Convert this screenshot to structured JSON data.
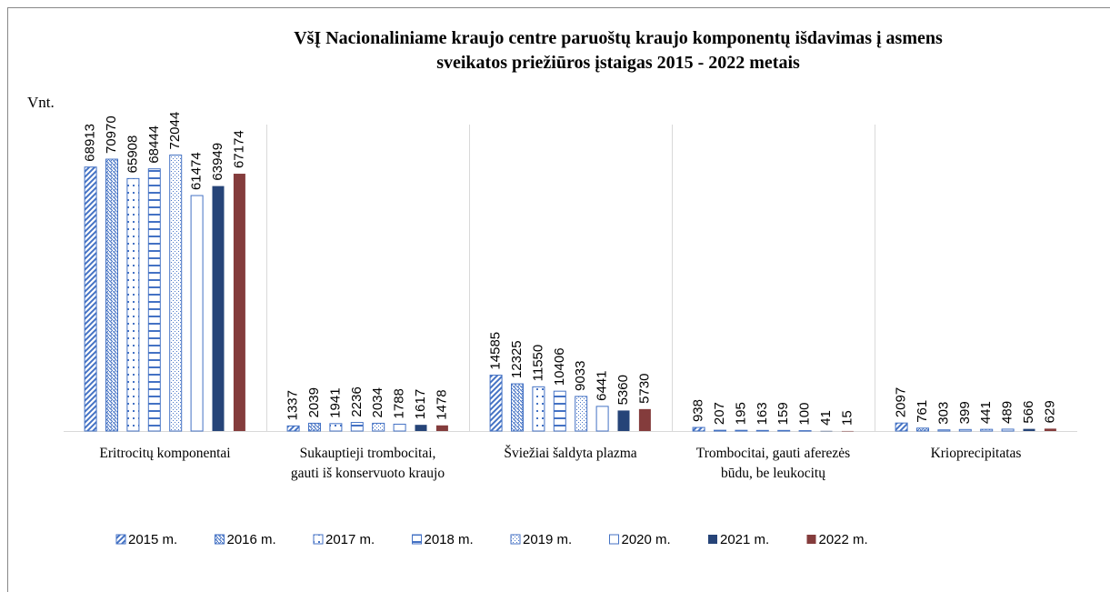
{
  "chart_data": {
    "type": "bar",
    "title": "VšĮ Nacionaliniame kraujo centre paruoštų kraujo komponentų išdavimas į asmens",
    "subtitle": "sveikatos priežiūros įstaigas 2015 - 2022 metais",
    "y_label": "Vnt.",
    "categories": [
      "Eritrocitų komponentai",
      "Sukauptieji trombocitai, gauti iš konservuoto kraujo",
      "Šviežiai šaldyta plazma",
      "Trombocitai, gauti aferezės būdu, be leukocitų",
      "Krioprecipitatas"
    ],
    "series": [
      {
        "name": "2015 m.",
        "color": "#4472c4",
        "values": [
          68913,
          1337,
          14585,
          938,
          2097
        ]
      },
      {
        "name": "2016 m.",
        "color": "#4472c4",
        "values": [
          70970,
          2039,
          12325,
          207,
          761
        ]
      },
      {
        "name": "2017 m.",
        "color": "#4472c4",
        "values": [
          65908,
          1941,
          11550,
          195,
          303
        ]
      },
      {
        "name": "2018 m.",
        "color": "#4472c4",
        "values": [
          68444,
          2236,
          10406,
          163,
          399
        ]
      },
      {
        "name": "2019 m.",
        "color": "#4472c4",
        "values": [
          72044,
          2034,
          9033,
          159,
          441
        ]
      },
      {
        "name": "2020 m.",
        "color": "#4472c4",
        "values": [
          61474,
          1788,
          6441,
          100,
          489
        ]
      },
      {
        "name": "2021 m.",
        "color": "#264478",
        "values": [
          63949,
          1617,
          5360,
          41,
          566
        ]
      },
      {
        "name": "2022 m.",
        "color": "#843c3c",
        "values": [
          67174,
          1478,
          5730,
          15,
          629
        ]
      }
    ],
    "ylim": [
      0,
      80000
    ]
  }
}
